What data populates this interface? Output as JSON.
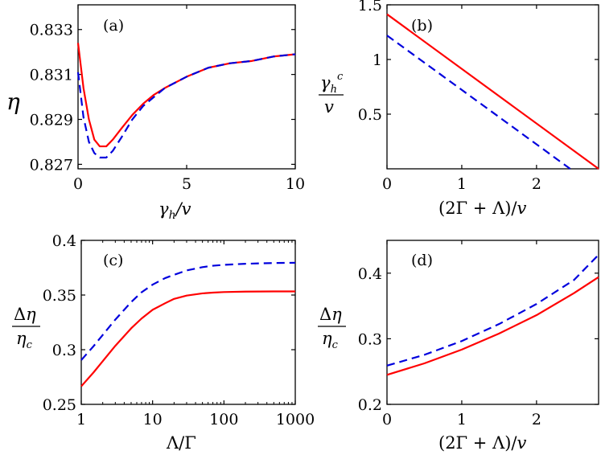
{
  "chart_data": [
    {
      "type": "line",
      "panel_label": "(a)",
      "xlabel": "γh/v",
      "ylabel": "η",
      "xscale": "linear",
      "xlim": [
        0,
        10
      ],
      "ylim": [
        0.8268,
        0.8341
      ],
      "xticks": [
        0,
        5,
        10
      ],
      "xticklabels": [
        "0",
        "5",
        "10"
      ],
      "yticks": [
        0.827,
        0.829,
        0.831,
        0.833
      ],
      "yticklabels": [
        "0.827",
        "0.829",
        "0.831",
        "0.833"
      ],
      "series": [
        {
          "name": "solid",
          "color": "#ff0000",
          "dash": "solid",
          "x": [
            0,
            0.25,
            0.5,
            0.75,
            1.0,
            1.3,
            1.6,
            2.0,
            2.5,
            3.0,
            3.5,
            4.0,
            5.0,
            6.0,
            7.0,
            8.0,
            9.0,
            10.0
          ],
          "y": [
            0.8324,
            0.8304,
            0.829,
            0.8281,
            0.8278,
            0.8278,
            0.8281,
            0.8286,
            0.8292,
            0.8297,
            0.8301,
            0.8304,
            0.8309,
            0.8313,
            0.8315,
            0.8316,
            0.8318,
            0.8319
          ]
        },
        {
          "name": "dashed",
          "color": "#0000dd",
          "dash": "dashed",
          "x": [
            0,
            0.25,
            0.5,
            0.75,
            1.0,
            1.3,
            1.6,
            2.0,
            2.5,
            3.0,
            3.5,
            4.0,
            5.0,
            6.0,
            7.0,
            8.0,
            9.0,
            10.0
          ],
          "y": [
            0.8311,
            0.8291,
            0.828,
            0.8275,
            0.8273,
            0.8273,
            0.8276,
            0.8282,
            0.829,
            0.8296,
            0.83,
            0.8304,
            0.8309,
            0.8313,
            0.8315,
            0.8316,
            0.8318,
            0.8319
          ]
        }
      ]
    },
    {
      "type": "line",
      "panel_label": "(b)",
      "xlabel": "(2Γ + Λ)/v",
      "ylabel_num": "γh^c",
      "ylabel_den": "v",
      "xscale": "linear",
      "xlim": [
        0,
        2.83
      ],
      "ylim": [
        0,
        1.5
      ],
      "xticks": [
        0,
        1,
        2
      ],
      "xticklabels": [
        "0",
        "1",
        "2"
      ],
      "yticks": [
        0.5,
        1.0,
        1.5
      ],
      "yticklabels": [
        "0.5",
        "1",
        "1.5"
      ],
      "series": [
        {
          "name": "solid",
          "color": "#ff0000",
          "dash": "solid",
          "x": [
            0,
            2.83
          ],
          "y": [
            1.414,
            0
          ]
        },
        {
          "name": "dashed",
          "color": "#0000dd",
          "dash": "dashed",
          "x": [
            0,
            2.45
          ],
          "y": [
            1.22,
            0
          ]
        }
      ]
    },
    {
      "type": "line",
      "panel_label": "(c)",
      "xlabel": "Λ/Γ",
      "ylabel_num": "Δη",
      "ylabel_den": "ηc",
      "xscale": "log",
      "xlim": [
        1,
        1000
      ],
      "ylim": [
        0.25,
        0.4
      ],
      "xticks": [
        1,
        10,
        100,
        1000
      ],
      "xticklabels": [
        "1",
        "10",
        "100",
        "1000"
      ],
      "yticks": [
        0.25,
        0.3,
        0.35,
        0.4
      ],
      "yticklabels": [
        "0.25",
        "0.3",
        "0.35",
        "0.4"
      ],
      "series": [
        {
          "name": "solid",
          "color": "#ff0000",
          "dash": "solid",
          "x": [
            1,
            1.5,
            2,
            3,
            5,
            7,
            10,
            15,
            20,
            30,
            50,
            70,
            100,
            200,
            500,
            1000
          ],
          "y": [
            0.2665,
            0.2795,
            0.2895,
            0.3035,
            0.3195,
            0.3285,
            0.3365,
            0.3425,
            0.3465,
            0.3495,
            0.3515,
            0.3522,
            0.3527,
            0.3531,
            0.3533,
            0.3533
          ]
        },
        {
          "name": "dashed",
          "color": "#0000dd",
          "dash": "dashed",
          "x": [
            1,
            1.5,
            2,
            3,
            5,
            7,
            10,
            15,
            20,
            30,
            50,
            70,
            100,
            200,
            500,
            1000
          ],
          "y": [
            0.2905,
            0.3035,
            0.3135,
            0.3275,
            0.3435,
            0.3525,
            0.3595,
            0.3655,
            0.3685,
            0.3725,
            0.3755,
            0.3768,
            0.3776,
            0.3786,
            0.3793,
            0.3795
          ]
        }
      ]
    },
    {
      "type": "line",
      "panel_label": "(d)",
      "xlabel": "(2Γ + Λ)/v",
      "ylabel_num": "Δη",
      "ylabel_den": "ηc",
      "xscale": "linear",
      "xlim": [
        0,
        2.83
      ],
      "ylim": [
        0.2,
        0.45
      ],
      "xticks": [
        0,
        1,
        2
      ],
      "xticklabels": [
        "0",
        "1",
        "2"
      ],
      "yticks": [
        0.2,
        0.3,
        0.4
      ],
      "yticklabels": [
        "0.2",
        "0.3",
        "0.4"
      ],
      "series": [
        {
          "name": "solid",
          "color": "#ff0000",
          "dash": "solid",
          "x": [
            0,
            0.5,
            1.0,
            1.5,
            2.0,
            2.5,
            2.83
          ],
          "y": [
            0.245,
            0.2625,
            0.2835,
            0.308,
            0.336,
            0.3695,
            0.394
          ]
        },
        {
          "name": "dashed",
          "color": "#0000dd",
          "dash": "dashed",
          "x": [
            0,
            0.5,
            1.0,
            1.5,
            2.0,
            2.5,
            2.83
          ],
          "y": [
            0.259,
            0.2755,
            0.2965,
            0.3225,
            0.353,
            0.3895,
            0.428
          ]
        }
      ]
    }
  ]
}
